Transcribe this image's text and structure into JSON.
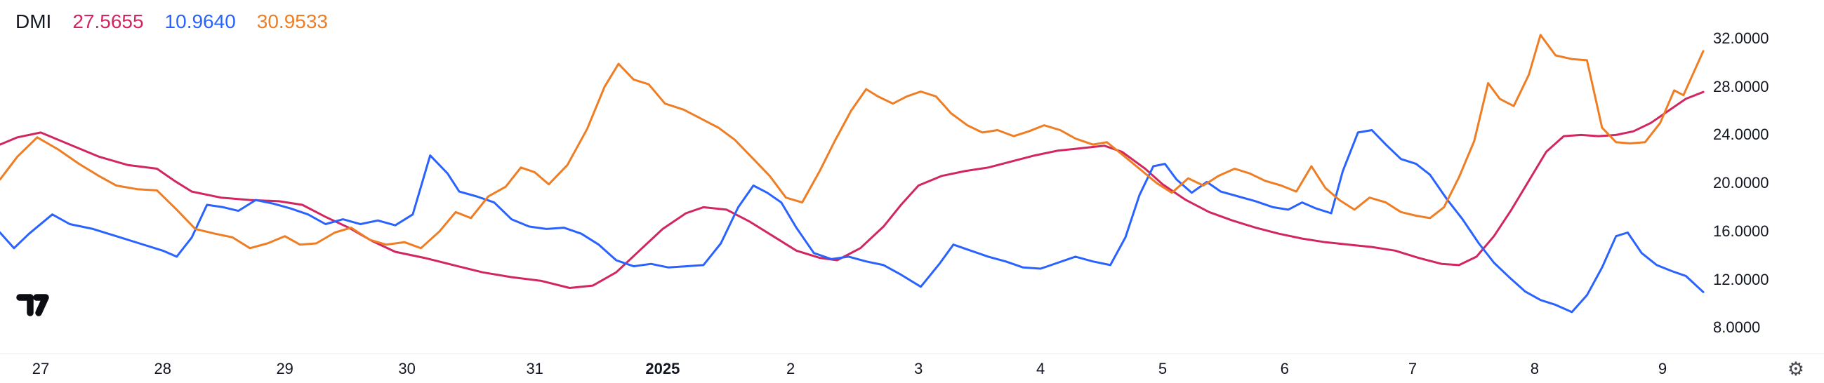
{
  "header": {
    "title": "DMI",
    "values": [
      {
        "text": "27.5655",
        "color": "#d1265e"
      },
      {
        "text": "10.9640",
        "color": "#2962ff"
      },
      {
        "text": "30.9533",
        "color": "#ef7d23"
      }
    ]
  },
  "icons": {
    "logo": "tradingview-logo",
    "axis_settings": "⚙"
  },
  "chart_data": {
    "type": "line",
    "title": "DMI",
    "legend_position": "top-left",
    "grid": false,
    "ylim": [
      5.8,
      35.2
    ],
    "yticks": [
      32,
      28,
      24,
      20,
      16,
      12,
      8
    ],
    "ytick_labels": [
      "32.0000",
      "28.0000",
      "24.0000",
      "20.0000",
      "16.0000",
      "12.0000",
      "8.0000"
    ],
    "x_ticks": [
      {
        "label": "27",
        "x": 35,
        "bold": false
      },
      {
        "label": "28",
        "x": 140,
        "bold": false
      },
      {
        "label": "29",
        "x": 245,
        "bold": false
      },
      {
        "label": "30",
        "x": 350,
        "bold": false
      },
      {
        "label": "31",
        "x": 460,
        "bold": false
      },
      {
        "label": "2025",
        "x": 570,
        "bold": true
      },
      {
        "label": "2",
        "x": 680,
        "bold": false
      },
      {
        "label": "3",
        "x": 790,
        "bold": false
      },
      {
        "label": "4",
        "x": 895,
        "bold": false
      },
      {
        "label": "5",
        "x": 1000,
        "bold": false
      },
      {
        "label": "6",
        "x": 1105,
        "bold": false
      },
      {
        "label": "7",
        "x": 1215,
        "bold": false
      },
      {
        "label": "8",
        "x": 1320,
        "bold": false
      },
      {
        "label": "9",
        "x": 1430,
        "bold": false
      }
    ],
    "series": [
      {
        "name": "red",
        "last_value": 27.5655,
        "color": "#d1265e",
        "points": [
          [
            0,
            23.2
          ],
          [
            15,
            23.8
          ],
          [
            35,
            24.2
          ],
          [
            60,
            23.2
          ],
          [
            85,
            22.2
          ],
          [
            110,
            21.5
          ],
          [
            135,
            21.2
          ],
          [
            150,
            20.2
          ],
          [
            165,
            19.3
          ],
          [
            190,
            18.8
          ],
          [
            215,
            18.6
          ],
          [
            240,
            18.5
          ],
          [
            260,
            18.2
          ],
          [
            280,
            17.2
          ],
          [
            300,
            16.3
          ],
          [
            320,
            15.2
          ],
          [
            340,
            14.3
          ],
          [
            365,
            13.8
          ],
          [
            390,
            13.2
          ],
          [
            415,
            12.6
          ],
          [
            440,
            12.2
          ],
          [
            465,
            11.9
          ],
          [
            490,
            11.3
          ],
          [
            510,
            11.5
          ],
          [
            530,
            12.6
          ],
          [
            550,
            14.4
          ],
          [
            570,
            16.2
          ],
          [
            590,
            17.5
          ],
          [
            605,
            18.0
          ],
          [
            625,
            17.8
          ],
          [
            645,
            16.8
          ],
          [
            665,
            15.6
          ],
          [
            685,
            14.4
          ],
          [
            705,
            13.8
          ],
          [
            720,
            13.6
          ],
          [
            740,
            14.6
          ],
          [
            760,
            16.4
          ],
          [
            775,
            18.2
          ],
          [
            790,
            19.8
          ],
          [
            810,
            20.6
          ],
          [
            830,
            21.0
          ],
          [
            850,
            21.3
          ],
          [
            870,
            21.8
          ],
          [
            890,
            22.3
          ],
          [
            910,
            22.7
          ],
          [
            930,
            22.9
          ],
          [
            950,
            23.1
          ],
          [
            965,
            22.6
          ],
          [
            985,
            21.2
          ],
          [
            1000,
            19.9
          ],
          [
            1020,
            18.6
          ],
          [
            1040,
            17.6
          ],
          [
            1060,
            16.9
          ],
          [
            1080,
            16.3
          ],
          [
            1100,
            15.8
          ],
          [
            1120,
            15.4
          ],
          [
            1140,
            15.1
          ],
          [
            1160,
            14.9
          ],
          [
            1180,
            14.7
          ],
          [
            1200,
            14.4
          ],
          [
            1220,
            13.8
          ],
          [
            1240,
            13.3
          ],
          [
            1255,
            13.2
          ],
          [
            1270,
            13.9
          ],
          [
            1285,
            15.6
          ],
          [
            1300,
            17.8
          ],
          [
            1315,
            20.2
          ],
          [
            1330,
            22.6
          ],
          [
            1345,
            23.9
          ],
          [
            1360,
            24.0
          ],
          [
            1375,
            23.9
          ],
          [
            1390,
            24.0
          ],
          [
            1405,
            24.3
          ],
          [
            1420,
            25.0
          ],
          [
            1435,
            26.0
          ],
          [
            1450,
            27.0
          ],
          [
            1465,
            27.5655
          ]
        ]
      },
      {
        "name": "blue",
        "last_value": 10.964,
        "color": "#2962ff",
        "points": [
          [
            0,
            15.9
          ],
          [
            12,
            14.6
          ],
          [
            25,
            15.8
          ],
          [
            45,
            17.4
          ],
          [
            60,
            16.6
          ],
          [
            80,
            16.2
          ],
          [
            100,
            15.6
          ],
          [
            120,
            15.0
          ],
          [
            140,
            14.4
          ],
          [
            152,
            13.9
          ],
          [
            165,
            15.5
          ],
          [
            178,
            18.2
          ],
          [
            192,
            18.0
          ],
          [
            205,
            17.7
          ],
          [
            220,
            18.6
          ],
          [
            235,
            18.3
          ],
          [
            250,
            17.9
          ],
          [
            265,
            17.4
          ],
          [
            280,
            16.6
          ],
          [
            295,
            17.0
          ],
          [
            310,
            16.6
          ],
          [
            325,
            16.9
          ],
          [
            340,
            16.5
          ],
          [
            355,
            17.4
          ],
          [
            370,
            22.3
          ],
          [
            385,
            20.8
          ],
          [
            395,
            19.3
          ],
          [
            410,
            18.9
          ],
          [
            425,
            18.4
          ],
          [
            440,
            17.0
          ],
          [
            455,
            16.4
          ],
          [
            470,
            16.2
          ],
          [
            485,
            16.3
          ],
          [
            500,
            15.8
          ],
          [
            515,
            14.9
          ],
          [
            530,
            13.6
          ],
          [
            545,
            13.1
          ],
          [
            560,
            13.3
          ],
          [
            575,
            13.0
          ],
          [
            590,
            13.1
          ],
          [
            605,
            13.2
          ],
          [
            620,
            15.0
          ],
          [
            635,
            18.0
          ],
          [
            648,
            19.8
          ],
          [
            660,
            19.2
          ],
          [
            672,
            18.4
          ],
          [
            685,
            16.3
          ],
          [
            700,
            14.2
          ],
          [
            715,
            13.7
          ],
          [
            730,
            13.9
          ],
          [
            745,
            13.5
          ],
          [
            760,
            13.2
          ],
          [
            775,
            12.4
          ],
          [
            792,
            11.4
          ],
          [
            808,
            13.3
          ],
          [
            820,
            14.9
          ],
          [
            835,
            14.4
          ],
          [
            850,
            13.9
          ],
          [
            865,
            13.5
          ],
          [
            880,
            13.0
          ],
          [
            895,
            12.9
          ],
          [
            910,
            13.4
          ],
          [
            925,
            13.9
          ],
          [
            940,
            13.5
          ],
          [
            955,
            13.2
          ],
          [
            968,
            15.5
          ],
          [
            980,
            19.0
          ],
          [
            992,
            21.4
          ],
          [
            1002,
            21.6
          ],
          [
            1012,
            20.3
          ],
          [
            1025,
            19.2
          ],
          [
            1038,
            20.1
          ],
          [
            1050,
            19.3
          ],
          [
            1065,
            18.9
          ],
          [
            1080,
            18.5
          ],
          [
            1095,
            18.0
          ],
          [
            1108,
            17.8
          ],
          [
            1120,
            18.4
          ],
          [
            1132,
            17.9
          ],
          [
            1145,
            17.5
          ],
          [
            1155,
            21.0
          ],
          [
            1168,
            24.2
          ],
          [
            1180,
            24.4
          ],
          [
            1192,
            23.2
          ],
          [
            1205,
            22.0
          ],
          [
            1218,
            21.6
          ],
          [
            1230,
            20.7
          ],
          [
            1245,
            18.6
          ],
          [
            1258,
            17.0
          ],
          [
            1272,
            15.0
          ],
          [
            1285,
            13.4
          ],
          [
            1298,
            12.2
          ],
          [
            1312,
            11.0
          ],
          [
            1325,
            10.3
          ],
          [
            1338,
            9.9
          ],
          [
            1352,
            9.3
          ],
          [
            1365,
            10.7
          ],
          [
            1378,
            13.0
          ],
          [
            1390,
            15.6
          ],
          [
            1400,
            15.9
          ],
          [
            1412,
            14.2
          ],
          [
            1425,
            13.2
          ],
          [
            1438,
            12.7
          ],
          [
            1450,
            12.3
          ],
          [
            1465,
            10.964
          ]
        ]
      },
      {
        "name": "orange",
        "last_value": 30.9533,
        "color": "#ef7d23",
        "points": [
          [
            0,
            20.3
          ],
          [
            15,
            22.2
          ],
          [
            32,
            23.8
          ],
          [
            50,
            22.8
          ],
          [
            68,
            21.6
          ],
          [
            85,
            20.6
          ],
          [
            100,
            19.8
          ],
          [
            118,
            19.5
          ],
          [
            135,
            19.4
          ],
          [
            152,
            17.8
          ],
          [
            168,
            16.2
          ],
          [
            185,
            15.8
          ],
          [
            200,
            15.5
          ],
          [
            215,
            14.6
          ],
          [
            230,
            15.0
          ],
          [
            245,
            15.6
          ],
          [
            258,
            14.9
          ],
          [
            272,
            15.0
          ],
          [
            288,
            15.9
          ],
          [
            302,
            16.3
          ],
          [
            318,
            15.3
          ],
          [
            332,
            14.9
          ],
          [
            348,
            15.1
          ],
          [
            362,
            14.6
          ],
          [
            378,
            16.0
          ],
          [
            392,
            17.6
          ],
          [
            405,
            17.1
          ],
          [
            420,
            18.9
          ],
          [
            435,
            19.7
          ],
          [
            448,
            21.3
          ],
          [
            460,
            20.9
          ],
          [
            472,
            19.9
          ],
          [
            488,
            21.5
          ],
          [
            505,
            24.5
          ],
          [
            520,
            28.0
          ],
          [
            532,
            29.9
          ],
          [
            545,
            28.6
          ],
          [
            558,
            28.2
          ],
          [
            572,
            26.6
          ],
          [
            588,
            26.1
          ],
          [
            602,
            25.4
          ],
          [
            618,
            24.6
          ],
          [
            632,
            23.6
          ],
          [
            648,
            22.0
          ],
          [
            662,
            20.6
          ],
          [
            676,
            18.8
          ],
          [
            690,
            18.4
          ],
          [
            705,
            21.0
          ],
          [
            718,
            23.5
          ],
          [
            732,
            26.0
          ],
          [
            745,
            27.8
          ],
          [
            755,
            27.2
          ],
          [
            768,
            26.6
          ],
          [
            780,
            27.2
          ],
          [
            792,
            27.6
          ],
          [
            805,
            27.2
          ],
          [
            818,
            25.8
          ],
          [
            832,
            24.8
          ],
          [
            845,
            24.2
          ],
          [
            858,
            24.4
          ],
          [
            872,
            23.9
          ],
          [
            885,
            24.3
          ],
          [
            898,
            24.8
          ],
          [
            912,
            24.4
          ],
          [
            925,
            23.7
          ],
          [
            940,
            23.2
          ],
          [
            952,
            23.4
          ],
          [
            965,
            22.4
          ],
          [
            980,
            21.2
          ],
          [
            995,
            20.0
          ],
          [
            1008,
            19.2
          ],
          [
            1022,
            20.4
          ],
          [
            1035,
            19.8
          ],
          [
            1048,
            20.6
          ],
          [
            1062,
            21.2
          ],
          [
            1075,
            20.8
          ],
          [
            1088,
            20.2
          ],
          [
            1102,
            19.8
          ],
          [
            1115,
            19.3
          ],
          [
            1128,
            21.4
          ],
          [
            1140,
            19.6
          ],
          [
            1152,
            18.6
          ],
          [
            1165,
            17.8
          ],
          [
            1178,
            18.8
          ],
          [
            1192,
            18.4
          ],
          [
            1205,
            17.6
          ],
          [
            1218,
            17.3
          ],
          [
            1230,
            17.1
          ],
          [
            1242,
            18.0
          ],
          [
            1255,
            20.5
          ],
          [
            1268,
            23.5
          ],
          [
            1280,
            28.3
          ],
          [
            1290,
            27.0
          ],
          [
            1302,
            26.4
          ],
          [
            1315,
            29.0
          ],
          [
            1325,
            32.3
          ],
          [
            1338,
            30.6
          ],
          [
            1352,
            30.3
          ],
          [
            1365,
            30.2
          ],
          [
            1378,
            24.6
          ],
          [
            1390,
            23.4
          ],
          [
            1402,
            23.3
          ],
          [
            1415,
            23.4
          ],
          [
            1428,
            25.0
          ],
          [
            1440,
            27.7
          ],
          [
            1448,
            27.3
          ],
          [
            1465,
            30.9533
          ]
        ]
      }
    ]
  }
}
